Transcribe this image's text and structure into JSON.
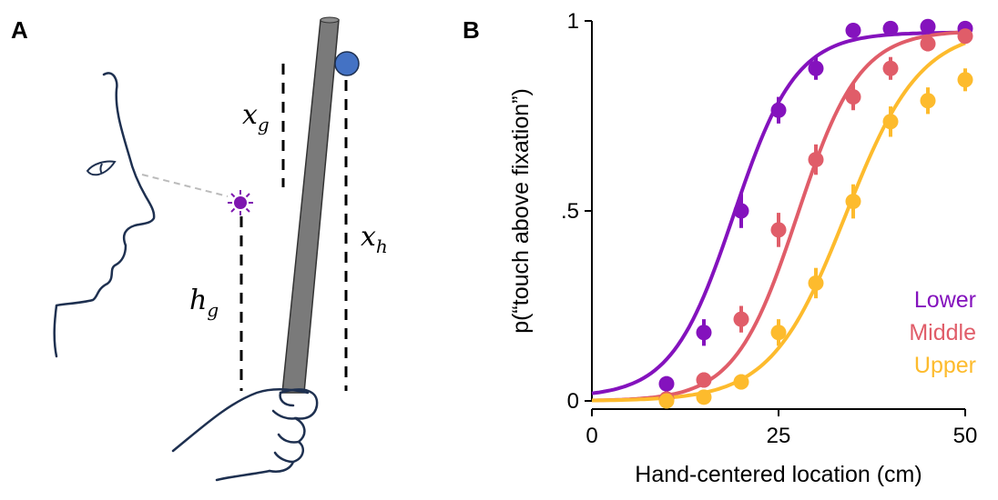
{
  "panel_a": {
    "letter": "A",
    "labels": {
      "xg": "x",
      "xg_sub": "g",
      "hg": "h",
      "hg_sub": "g",
      "xh": "x",
      "xh_sub": "h"
    },
    "colors": {
      "outline": "#1e3050",
      "stick": "#7a7a7a",
      "target": "#4472c4",
      "fixation": "#7e16b0",
      "gaze": "#bbbbbb"
    },
    "icons": [
      "face-profile-outline",
      "fixation-star-icon",
      "pointing-stick",
      "target-ball",
      "hand-outline"
    ]
  },
  "panel_b": {
    "letter": "B",
    "legend_position": "bottom-right"
  },
  "chart_data": {
    "type": "scatter",
    "title": "",
    "xlabel": "Hand-centered location (cm)",
    "ylabel": "p(“touch above fixation”)",
    "xlim": [
      0,
      50
    ],
    "ylim": [
      0,
      1
    ],
    "xticks": [
      0,
      25,
      50
    ],
    "xtick_labels": [
      "0",
      "25",
      "50"
    ],
    "yticks": [
      0,
      0.5,
      1
    ],
    "ytick_labels": [
      "0",
      ".5",
      "1"
    ],
    "grid": false,
    "x": [
      10,
      15,
      20,
      25,
      30,
      35,
      40,
      45,
      50
    ],
    "series": [
      {
        "name": "Lower",
        "color": "#8412bd",
        "values": [
          0.045,
          0.18,
          0.5,
          0.765,
          0.875,
          0.975,
          0.98,
          0.985,
          0.98
        ],
        "error": [
          0.02,
          0.035,
          0.045,
          0.035,
          0.03,
          0.01,
          0.01,
          0.01,
          0.01
        ],
        "fit": {
          "midpoint": 19,
          "slope": 0.24,
          "low": 0.01,
          "high": 0.97
        }
      },
      {
        "name": "Middle",
        "color": "#e05d69",
        "values": [
          0.005,
          0.055,
          0.215,
          0.45,
          0.635,
          0.8,
          0.875,
          0.94,
          0.96
        ],
        "error": [
          0.01,
          0.02,
          0.035,
          0.045,
          0.04,
          0.035,
          0.03,
          0.02,
          0.015
        ],
        "fit": {
          "midpoint": 27.5,
          "slope": 0.24,
          "low": 0.0,
          "high": 0.975
        }
      },
      {
        "name": "Upper",
        "color": "#fdbb2d",
        "values": [
          0.0,
          0.01,
          0.05,
          0.18,
          0.31,
          0.525,
          0.735,
          0.79,
          0.845
        ],
        "error": [
          0.01,
          0.01,
          0.02,
          0.035,
          0.04,
          0.045,
          0.04,
          0.035,
          0.03
        ],
        "fit": {
          "midpoint": 34,
          "slope": 0.2,
          "low": 0.0,
          "high": 0.98
        }
      }
    ]
  }
}
